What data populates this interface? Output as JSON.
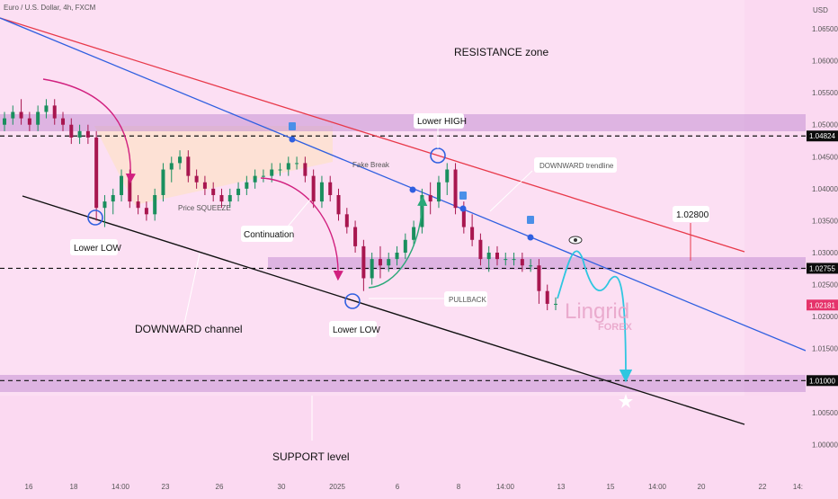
{
  "header": {
    "symbol_title": "Euro / U.S. Dollar, 4h, FXCM",
    "currency": "USD"
  },
  "chart_data": {
    "type": "candlestick",
    "ylim": [
      0.995,
      1.0695
    ],
    "yticks": [
      1.0,
      1.005,
      1.01,
      1.015,
      1.02,
      1.025,
      1.03,
      1.035,
      1.04,
      1.045,
      1.05,
      1.055,
      1.06,
      1.065
    ],
    "xticks": [
      "16",
      "18",
      "14:00",
      "23",
      "26",
      "30",
      "2025",
      "6",
      "8",
      "14:00",
      "13",
      "15",
      "14:00",
      "20",
      "22",
      "14:"
    ],
    "price_tags": [
      {
        "label": "1.04824",
        "value": 1.04824
      },
      {
        "label": "1.02755",
        "value": 1.02755
      },
      {
        "label": "1.02181",
        "value": 1.02181
      },
      {
        "label": "1.01000",
        "value": 1.01
      }
    ],
    "levels": [
      1.04824,
      1.02755,
      1.01
    ],
    "candles": [
      [
        1.05,
        1.052,
        1.049,
        1.051
      ],
      [
        1.051,
        1.053,
        1.05,
        1.052
      ],
      [
        1.052,
        1.054,
        1.05,
        1.051
      ],
      [
        1.051,
        1.052,
        1.049,
        1.05
      ],
      [
        1.05,
        1.053,
        1.049,
        1.052
      ],
      [
        1.052,
        1.054,
        1.051,
        1.053
      ],
      [
        1.053,
        1.054,
        1.05,
        1.051
      ],
      [
        1.051,
        1.052,
        1.049,
        1.05
      ],
      [
        1.05,
        1.051,
        1.047,
        1.048
      ],
      [
        1.048,
        1.05,
        1.047,
        1.049
      ],
      [
        1.049,
        1.05,
        1.047,
        1.048
      ],
      [
        1.048,
        1.049,
        1.035,
        1.037
      ],
      [
        1.037,
        1.039,
        1.034,
        1.038
      ],
      [
        1.038,
        1.04,
        1.036,
        1.039
      ],
      [
        1.039,
        1.043,
        1.038,
        1.042
      ],
      [
        1.042,
        1.043,
        1.037,
        1.038
      ],
      [
        1.038,
        1.039,
        1.036,
        1.037
      ],
      [
        1.037,
        1.038,
        1.035,
        1.036
      ],
      [
        1.036,
        1.04,
        1.035,
        1.039
      ],
      [
        1.039,
        1.044,
        1.038,
        1.043
      ],
      [
        1.043,
        1.045,
        1.041,
        1.044
      ],
      [
        1.044,
        1.046,
        1.043,
        1.045
      ],
      [
        1.045,
        1.046,
        1.041,
        1.042
      ],
      [
        1.042,
        1.043,
        1.04,
        1.041
      ],
      [
        1.041,
        1.042,
        1.039,
        1.04
      ],
      [
        1.04,
        1.041,
        1.038,
        1.039
      ],
      [
        1.039,
        1.04,
        1.037,
        1.038
      ],
      [
        1.038,
        1.04,
        1.037,
        1.039
      ],
      [
        1.039,
        1.041,
        1.038,
        1.04
      ],
      [
        1.04,
        1.042,
        1.039,
        1.041
      ],
      [
        1.041,
        1.043,
        1.04,
        1.042
      ],
      [
        1.042,
        1.043,
        1.041,
        1.042
      ],
      [
        1.042,
        1.044,
        1.041,
        1.043
      ],
      [
        1.043,
        1.044,
        1.042,
        1.043
      ],
      [
        1.043,
        1.045,
        1.042,
        1.044
      ],
      [
        1.044,
        1.045,
        1.043,
        1.044
      ],
      [
        1.044,
        1.045,
        1.041,
        1.042
      ],
      [
        1.042,
        1.043,
        1.037,
        1.038
      ],
      [
        1.038,
        1.042,
        1.037,
        1.041
      ],
      [
        1.041,
        1.042,
        1.038,
        1.039
      ],
      [
        1.039,
        1.04,
        1.035,
        1.036
      ],
      [
        1.036,
        1.037,
        1.033,
        1.034
      ],
      [
        1.034,
        1.035,
        1.03,
        1.031
      ],
      [
        1.031,
        1.032,
        1.024,
        1.026
      ],
      [
        1.026,
        1.03,
        1.025,
        1.029
      ],
      [
        1.029,
        1.031,
        1.026,
        1.028
      ],
      [
        1.028,
        1.03,
        1.027,
        1.029
      ],
      [
        1.029,
        1.031,
        1.028,
        1.03
      ],
      [
        1.03,
        1.033,
        1.029,
        1.032
      ],
      [
        1.032,
        1.035,
        1.031,
        1.034
      ],
      [
        1.034,
        1.04,
        1.033,
        1.039
      ],
      [
        1.039,
        1.041,
        1.036,
        1.038
      ],
      [
        1.038,
        1.042,
        1.037,
        1.041
      ],
      [
        1.041,
        1.044,
        1.039,
        1.043
      ],
      [
        1.043,
        1.044,
        1.036,
        1.037
      ],
      [
        1.037,
        1.038,
        1.033,
        1.034
      ],
      [
        1.034,
        1.036,
        1.031,
        1.032
      ],
      [
        1.032,
        1.033,
        1.028,
        1.029
      ],
      [
        1.029,
        1.031,
        1.027,
        1.03
      ],
      [
        1.03,
        1.031,
        1.028,
        1.029
      ],
      [
        1.029,
        1.03,
        1.028,
        1.029
      ],
      [
        1.029,
        1.03,
        1.028,
        1.029
      ],
      [
        1.029,
        1.03,
        1.027,
        1.028
      ],
      [
        1.028,
        1.029,
        1.027,
        1.028
      ],
      [
        1.028,
        1.029,
        1.022,
        1.024
      ],
      [
        1.024,
        1.025,
        1.021,
        1.022
      ],
      [
        1.022,
        1.023,
        1.021,
        1.022
      ]
    ],
    "annotations": [
      "RESISTANCE zone",
      "Lower HIGH",
      "DOWNWARD trendline",
      "1.02800",
      "Fake Break",
      "Price SQUEEZE",
      "Continuation",
      "Lower LOW",
      "Lower LOW",
      "PULLBACK",
      "DOWNWARD channel",
      "SUPPORT level"
    ]
  },
  "branding": {
    "name": "Lingrid",
    "sub": "FOREX"
  }
}
